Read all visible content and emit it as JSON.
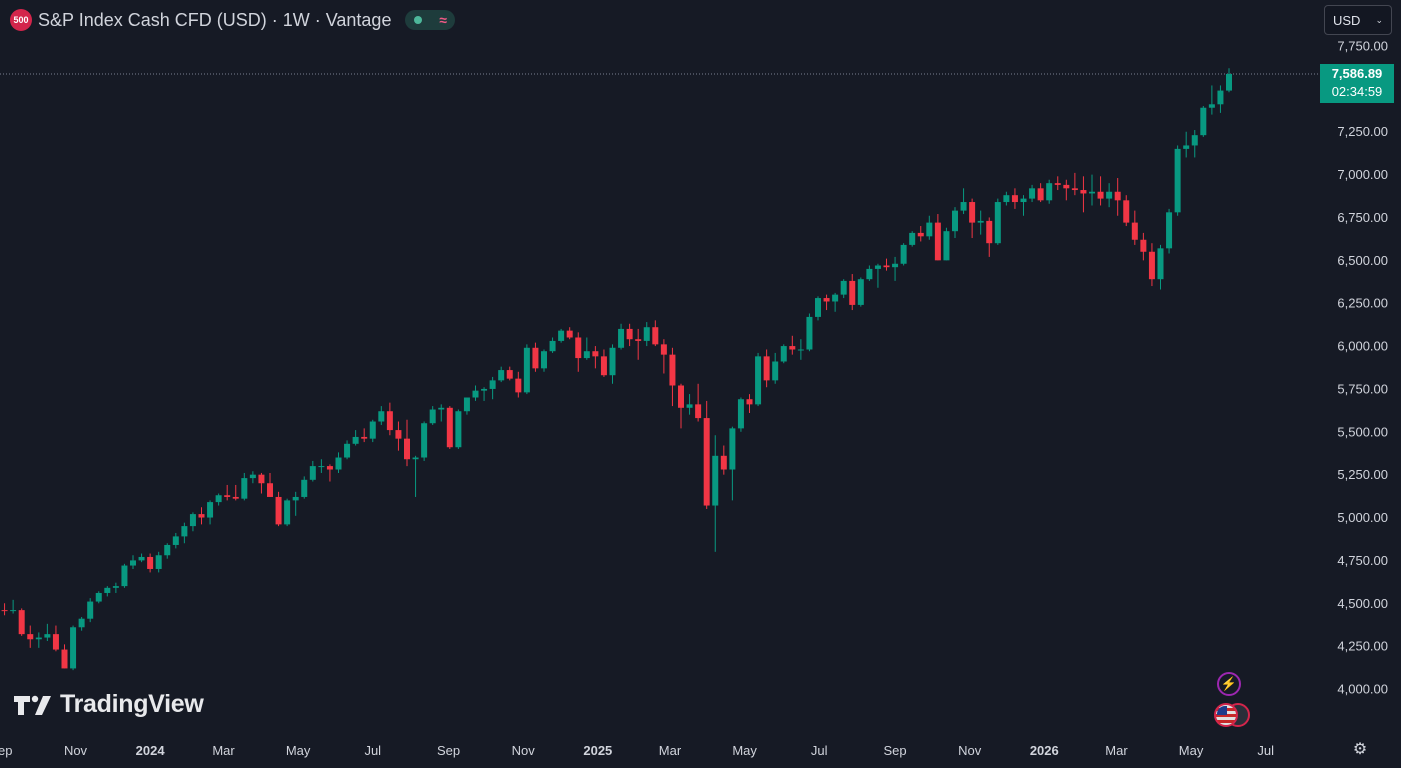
{
  "header": {
    "badge": "500",
    "title": "S&P Index Cash CFD (USD) · 1W · Vantage",
    "status_wave": "≈"
  },
  "currency": {
    "label": "USD",
    "chevron": "⌄"
  },
  "last_price": {
    "price": "7,586.89",
    "countdown": "02:34:59",
    "value": 7586.89,
    "color": "#089981"
  },
  "logo": {
    "mark": "TV",
    "text": "TradingView"
  },
  "colors": {
    "background": "#161a25",
    "up": "#089981",
    "down": "#f23645",
    "text": "#d1d4dc"
  },
  "icons": {
    "alert": "lightning-icon",
    "event": "us-flag-icon",
    "settings": "gear-icon"
  },
  "chart_data": {
    "type": "candlestick",
    "title": "S&P Index Cash CFD (USD) · 1W · Vantage",
    "interval": "1W",
    "y_axis": {
      "side": "right",
      "range": [
        3750,
        7900
      ],
      "ticks": [
        4000,
        4250,
        4500,
        4750,
        5000,
        5250,
        5500,
        5750,
        6000,
        6250,
        6500,
        6750,
        7000,
        7250,
        7500,
        7750
      ],
      "tick_labels": [
        "4,000.00",
        "4,250.00",
        "4,500.00",
        "4,750.00",
        "5,000.00",
        "5,250.00",
        "5,500.00",
        "5,750.00",
        "6,000.00",
        "6,250.00",
        "6,500.00",
        "6,750.00",
        "7,000.00",
        "7,250.00",
        "7,500.00",
        "7,750.00"
      ]
    },
    "x_axis": {
      "start_date": "2023-08-28",
      "end_date": "2026-07-20",
      "ticks": [
        {
          "label": "Sep",
          "date": "2023-09-01",
          "bold": false
        },
        {
          "label": "Nov",
          "date": "2023-11-01",
          "bold": false
        },
        {
          "label": "2024",
          "date": "2024-01-01",
          "bold": true
        },
        {
          "label": "Mar",
          "date": "2024-03-01",
          "bold": false
        },
        {
          "label": "May",
          "date": "2024-05-01",
          "bold": false
        },
        {
          "label": "Jul",
          "date": "2024-07-01",
          "bold": false
        },
        {
          "label": "Sep",
          "date": "2024-09-01",
          "bold": false
        },
        {
          "label": "Nov",
          "date": "2024-11-01",
          "bold": false
        },
        {
          "label": "2025",
          "date": "2025-01-01",
          "bold": true
        },
        {
          "label": "Mar",
          "date": "2025-03-01",
          "bold": false
        },
        {
          "label": "May",
          "date": "2025-05-01",
          "bold": false
        },
        {
          "label": "Jul",
          "date": "2025-07-01",
          "bold": false
        },
        {
          "label": "Sep",
          "date": "2025-09-01",
          "bold": false
        },
        {
          "label": "Nov",
          "date": "2025-11-01",
          "bold": false
        },
        {
          "label": "2026",
          "date": "2026-01-01",
          "bold": true
        },
        {
          "label": "Mar",
          "date": "2026-03-01",
          "bold": false
        },
        {
          "label": "May",
          "date": "2026-05-01",
          "bold": false
        },
        {
          "label": "Jul",
          "date": "2026-07-01",
          "bold": false
        }
      ]
    },
    "grid": false,
    "last_price_line": true,
    "columns": [
      "date",
      "open",
      "high",
      "low",
      "close"
    ],
    "candles": [
      [
        "2023-08-28",
        4480,
        4540,
        4420,
        4460
      ],
      [
        "2023-09-04",
        4460,
        4500,
        4430,
        4455
      ],
      [
        "2023-09-11",
        4455,
        4520,
        4440,
        4460
      ],
      [
        "2023-09-18",
        4460,
        4470,
        4310,
        4320
      ],
      [
        "2023-09-25",
        4320,
        4370,
        4240,
        4290
      ],
      [
        "2023-10-02",
        4290,
        4330,
        4240,
        4300
      ],
      [
        "2023-10-09",
        4300,
        4380,
        4280,
        4320
      ],
      [
        "2023-10-16",
        4320,
        4370,
        4220,
        4230
      ],
      [
        "2023-10-23",
        4230,
        4260,
        4120,
        4120
      ],
      [
        "2023-10-30",
        4120,
        4370,
        4110,
        4360
      ],
      [
        "2023-11-06",
        4360,
        4420,
        4340,
        4410
      ],
      [
        "2023-11-13",
        4410,
        4530,
        4390,
        4510
      ],
      [
        "2023-11-20",
        4510,
        4570,
        4500,
        4560
      ],
      [
        "2023-11-27",
        4560,
        4600,
        4540,
        4590
      ],
      [
        "2023-12-04",
        4590,
        4620,
        4560,
        4600
      ],
      [
        "2023-12-11",
        4600,
        4730,
        4590,
        4720
      ],
      [
        "2023-12-18",
        4720,
        4780,
        4700,
        4750
      ],
      [
        "2023-12-25",
        4750,
        4790,
        4740,
        4770
      ],
      [
        "2024-01-01",
        4770,
        4790,
        4680,
        4700
      ],
      [
        "2024-01-08",
        4700,
        4800,
        4680,
        4780
      ],
      [
        "2024-01-15",
        4780,
        4850,
        4760,
        4840
      ],
      [
        "2024-01-22",
        4840,
        4910,
        4820,
        4890
      ],
      [
        "2024-01-29",
        4890,
        4970,
        4850,
        4950
      ],
      [
        "2024-02-05",
        4950,
        5030,
        4920,
        5020
      ],
      [
        "2024-02-12",
        5020,
        5060,
        4960,
        5000
      ],
      [
        "2024-02-19",
        5000,
        5100,
        4960,
        5090
      ],
      [
        "2024-02-26",
        5090,
        5140,
        5070,
        5130
      ],
      [
        "2024-03-04",
        5130,
        5190,
        5100,
        5120
      ],
      [
        "2024-03-11",
        5120,
        5190,
        5100,
        5110
      ],
      [
        "2024-03-18",
        5110,
        5260,
        5100,
        5230
      ],
      [
        "2024-03-25",
        5230,
        5270,
        5200,
        5250
      ],
      [
        "2024-04-01",
        5250,
        5260,
        5140,
        5200
      ],
      [
        "2024-04-08",
        5200,
        5260,
        5120,
        5120
      ],
      [
        "2024-04-15",
        5120,
        5150,
        4950,
        4960
      ],
      [
        "2024-04-22",
        4960,
        5110,
        4950,
        5100
      ],
      [
        "2024-04-29",
        5100,
        5150,
        5010,
        5120
      ],
      [
        "2024-05-06",
        5120,
        5240,
        5110,
        5220
      ],
      [
        "2024-05-13",
        5220,
        5330,
        5210,
        5300
      ],
      [
        "2024-05-20",
        5300,
        5340,
        5260,
        5300
      ],
      [
        "2024-05-27",
        5300,
        5310,
        5210,
        5280
      ],
      [
        "2024-06-03",
        5280,
        5380,
        5260,
        5350
      ],
      [
        "2024-06-10",
        5350,
        5450,
        5340,
        5430
      ],
      [
        "2024-06-17",
        5430,
        5510,
        5420,
        5470
      ],
      [
        "2024-06-24",
        5470,
        5520,
        5440,
        5460
      ],
      [
        "2024-07-01",
        5460,
        5570,
        5440,
        5560
      ],
      [
        "2024-07-08",
        5560,
        5650,
        5540,
        5620
      ],
      [
        "2024-07-15",
        5620,
        5670,
        5480,
        5510
      ],
      [
        "2024-07-22",
        5510,
        5560,
        5390,
        5460
      ],
      [
        "2024-07-29",
        5460,
        5570,
        5300,
        5340
      ],
      [
        "2024-08-05",
        5340,
        5360,
        5120,
        5350
      ],
      [
        "2024-08-12",
        5350,
        5560,
        5330,
        5550
      ],
      [
        "2024-08-19",
        5550,
        5650,
        5540,
        5630
      ],
      [
        "2024-08-26",
        5630,
        5660,
        5560,
        5640
      ],
      [
        "2024-09-02",
        5640,
        5650,
        5400,
        5410
      ],
      [
        "2024-09-09",
        5410,
        5630,
        5400,
        5620
      ],
      [
        "2024-09-16",
        5620,
        5690,
        5600,
        5700
      ],
      [
        "2024-09-23",
        5700,
        5770,
        5680,
        5740
      ],
      [
        "2024-09-30",
        5740,
        5760,
        5680,
        5750
      ],
      [
        "2024-10-07",
        5750,
        5820,
        5690,
        5800
      ],
      [
        "2024-10-14",
        5800,
        5880,
        5790,
        5860
      ],
      [
        "2024-10-21",
        5860,
        5880,
        5800,
        5810
      ],
      [
        "2024-10-28",
        5810,
        5850,
        5700,
        5730
      ],
      [
        "2024-11-04",
        5730,
        6010,
        5720,
        5990
      ],
      [
        "2024-11-11",
        5990,
        6020,
        5850,
        5870
      ],
      [
        "2024-11-18",
        5870,
        5980,
        5850,
        5970
      ],
      [
        "2024-11-25",
        5970,
        6050,
        5960,
        6030
      ],
      [
        "2024-12-02",
        6030,
        6100,
        6020,
        6090
      ],
      [
        "2024-12-09",
        6090,
        6110,
        6040,
        6050
      ],
      [
        "2024-12-16",
        6050,
        6080,
        5850,
        5930
      ],
      [
        "2024-12-23",
        5930,
        6050,
        5920,
        5970
      ],
      [
        "2024-12-30",
        5970,
        6000,
        5870,
        5940
      ],
      [
        "2025-01-06",
        5940,
        5980,
        5820,
        5830
      ],
      [
        "2025-01-13",
        5830,
        6010,
        5780,
        5990
      ],
      [
        "2025-01-20",
        5990,
        6130,
        5980,
        6100
      ],
      [
        "2025-01-27",
        6100,
        6130,
        6000,
        6040
      ],
      [
        "2025-02-03",
        6040,
        6100,
        5920,
        6030
      ],
      [
        "2025-02-10",
        6030,
        6140,
        6000,
        6110
      ],
      [
        "2025-02-17",
        6110,
        6150,
        6000,
        6010
      ],
      [
        "2025-02-24",
        6010,
        6040,
        5840,
        5950
      ],
      [
        "2025-03-03",
        5950,
        5990,
        5650,
        5770
      ],
      [
        "2025-03-10",
        5770,
        5780,
        5520,
        5640
      ],
      [
        "2025-03-17",
        5640,
        5720,
        5600,
        5660
      ],
      [
        "2025-03-24",
        5660,
        5780,
        5560,
        5580
      ],
      [
        "2025-03-31",
        5580,
        5680,
        5050,
        5070
      ],
      [
        "2025-04-07",
        5070,
        5480,
        4800,
        5360
      ],
      [
        "2025-04-14",
        5360,
        5420,
        5250,
        5280
      ],
      [
        "2025-04-21",
        5280,
        5530,
        5100,
        5520
      ],
      [
        "2025-04-28",
        5520,
        5700,
        5500,
        5690
      ],
      [
        "2025-05-05",
        5690,
        5720,
        5610,
        5660
      ],
      [
        "2025-05-12",
        5660,
        5960,
        5650,
        5940
      ],
      [
        "2025-05-19",
        5940,
        5980,
        5760,
        5800
      ],
      [
        "2025-05-26",
        5800,
        5960,
        5780,
        5910
      ],
      [
        "2025-06-02",
        5910,
        6010,
        5900,
        6000
      ],
      [
        "2025-06-09",
        6000,
        6060,
        5950,
        5980
      ],
      [
        "2025-06-16",
        5980,
        6040,
        5920,
        5980
      ],
      [
        "2025-06-23",
        5980,
        6190,
        5970,
        6170
      ],
      [
        "2025-06-30",
        6170,
        6290,
        6150,
        6280
      ],
      [
        "2025-07-07",
        6280,
        6300,
        6210,
        6260
      ],
      [
        "2025-07-14",
        6260,
        6310,
        6200,
        6300
      ],
      [
        "2025-07-21",
        6300,
        6390,
        6280,
        6380
      ],
      [
        "2025-07-28",
        6380,
        6420,
        6210,
        6240
      ],
      [
        "2025-08-04",
        6240,
        6400,
        6230,
        6390
      ],
      [
        "2025-08-11",
        6390,
        6470,
        6380,
        6450
      ],
      [
        "2025-08-18",
        6450,
        6480,
        6340,
        6470
      ],
      [
        "2025-08-25",
        6470,
        6510,
        6440,
        6460
      ],
      [
        "2025-09-01",
        6460,
        6520,
        6380,
        6480
      ],
      [
        "2025-09-08",
        6480,
        6600,
        6470,
        6590
      ],
      [
        "2025-09-15",
        6590,
        6670,
        6580,
        6660
      ],
      [
        "2025-09-22",
        6660,
        6700,
        6610,
        6640
      ],
      [
        "2025-09-29",
        6640,
        6760,
        6620,
        6720
      ],
      [
        "2025-10-06",
        6720,
        6770,
        6500,
        6500
      ],
      [
        "2025-10-13",
        6500,
        6690,
        6500,
        6670
      ],
      [
        "2025-10-20",
        6670,
        6810,
        6630,
        6790
      ],
      [
        "2025-10-27",
        6790,
        6920,
        6770,
        6840
      ],
      [
        "2025-11-03",
        6840,
        6860,
        6630,
        6720
      ],
      [
        "2025-11-10",
        6720,
        6790,
        6650,
        6730
      ],
      [
        "2025-11-17",
        6730,
        6750,
        6520,
        6600
      ],
      [
        "2025-11-24",
        6600,
        6860,
        6590,
        6840
      ],
      [
        "2025-12-01",
        6840,
        6900,
        6820,
        6880
      ],
      [
        "2025-12-08",
        6880,
        6920,
        6800,
        6840
      ],
      [
        "2025-12-15",
        6840,
        6880,
        6760,
        6860
      ],
      [
        "2025-12-22",
        6860,
        6940,
        6840,
        6920
      ],
      [
        "2025-12-29",
        6920,
        6950,
        6840,
        6850
      ],
      [
        "2026-01-05",
        6850,
        6970,
        6830,
        6950
      ],
      [
        "2026-01-12",
        6950,
        6990,
        6910,
        6940
      ],
      [
        "2026-01-19",
        6940,
        6970,
        6850,
        6920
      ],
      [
        "2026-01-26",
        6920,
        7010,
        6880,
        6910
      ],
      [
        "2026-02-02",
        6910,
        6990,
        6780,
        6890
      ],
      [
        "2026-02-09",
        6890,
        7000,
        6820,
        6900
      ],
      [
        "2026-02-16",
        6900,
        6990,
        6820,
        6860
      ],
      [
        "2026-02-23",
        6860,
        6950,
        6810,
        6900
      ],
      [
        "2026-03-02",
        6900,
        6980,
        6760,
        6850
      ],
      [
        "2026-03-09",
        6850,
        6880,
        6700,
        6720
      ],
      [
        "2026-03-16",
        6720,
        6790,
        6590,
        6620
      ],
      [
        "2026-03-23",
        6620,
        6660,
        6500,
        6550
      ],
      [
        "2026-03-30",
        6550,
        6600,
        6350,
        6390
      ],
      [
        "2026-04-06",
        6390,
        6590,
        6330,
        6570
      ],
      [
        "2026-04-13",
        6570,
        6800,
        6540,
        6780
      ],
      [
        "2026-04-20",
        6780,
        7170,
        6760,
        7150
      ],
      [
        "2026-04-27",
        7150,
        7250,
        7100,
        7170
      ],
      [
        "2026-05-04",
        7170,
        7260,
        7100,
        7230
      ],
      [
        "2026-05-11",
        7230,
        7400,
        7220,
        7390
      ],
      [
        "2026-05-18",
        7390,
        7520,
        7350,
        7410
      ],
      [
        "2026-05-25",
        7410,
        7520,
        7360,
        7490
      ],
      [
        "2026-06-01",
        7490,
        7620,
        7480,
        7587
      ]
    ]
  }
}
